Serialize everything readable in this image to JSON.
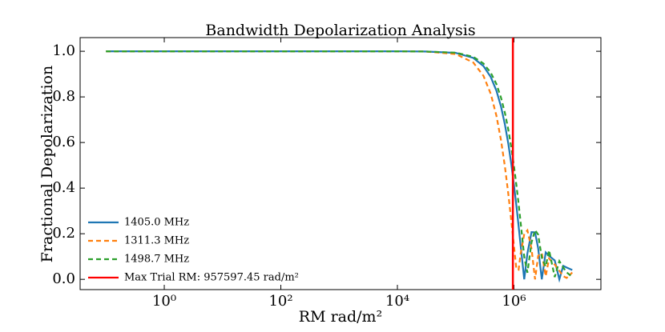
{
  "chart_data": {
    "type": "line",
    "title": "Bandwidth Depolarization Analysis",
    "x_label": "RM rad/m²",
    "y_label": "Fractional Depolarization",
    "x_scale": "log",
    "xlim": [
      0.036,
      31000000
    ],
    "ylim": [
      -0.045,
      1.06
    ],
    "xticks": [
      {
        "value": 1,
        "label": "10⁰"
      },
      {
        "value": 100,
        "label": "10²"
      },
      {
        "value": 10000,
        "label": "10⁴"
      },
      {
        "value": 1000000,
        "label": "10⁶"
      }
    ],
    "yticks": [
      {
        "value": 0,
        "label": "0.0"
      },
      {
        "value": 0.2,
        "label": "0.2"
      },
      {
        "value": 0.4,
        "label": "0.4"
      },
      {
        "value": 0.6,
        "label": "0.6"
      },
      {
        "value": 0.8,
        "label": "0.8"
      },
      {
        "value": 1,
        "label": "1.0"
      }
    ],
    "legend": "lower left",
    "x": [
      0.1,
      1,
      10,
      100,
      1000,
      10000,
      30000,
      100000,
      200000,
      300000,
      400000,
      500000,
      600000,
      700000,
      800000,
      900000,
      1000000,
      1100000,
      1200000,
      1300000,
      1500000,
      1700000,
      2000000,
      2300000,
      2600000,
      3000000,
      3500000,
      4000000,
      5000000,
      6000000,
      7000000,
      8000000,
      10000000
    ],
    "series": [
      {
        "name": "1405.0 MHz",
        "color": "#1f77b4",
        "style": "solid",
        "values": [
          1.0,
          1.0,
          1.0,
          1.0,
          1.0,
          1.0,
          0.999,
          0.993,
          0.971,
          0.935,
          0.887,
          0.827,
          0.757,
          0.678,
          0.594,
          0.505,
          0.413,
          0.323,
          0.234,
          0.149,
          0,
          0.114,
          0.207,
          0.206,
          0.136,
          0,
          0.118,
          0.103,
          0.083,
          0,
          0.059,
          0.052,
          0.041
        ]
      },
      {
        "name": "1311.3 MHz",
        "color": "#ff7f0e",
        "style": "dashed",
        "values": [
          1.0,
          1.0,
          1.0,
          1.0,
          1.0,
          1.0,
          0.999,
          0.988,
          0.951,
          0.892,
          0.813,
          0.717,
          0.609,
          0.493,
          0.374,
          0.256,
          0.146,
          0.045,
          0.042,
          0.112,
          0.199,
          0.215,
          0.134,
          0,
          0.103,
          0.115,
          0.014,
          0.091,
          0.065,
          0.038,
          0.014,
          0.006,
          0.03
        ]
      },
      {
        "name": "1498.7 MHz",
        "color": "#2ca02c",
        "style": "dashed",
        "values": [
          1.0,
          1.0,
          1.0,
          1.0,
          1.0,
          1.0,
          0.999,
          0.994,
          0.976,
          0.946,
          0.906,
          0.856,
          0.796,
          0.729,
          0.656,
          0.578,
          0.496,
          0.413,
          0.331,
          0.25,
          0.099,
          0.029,
          0.162,
          0.216,
          0.196,
          0.095,
          0.056,
          0.128,
          0.01,
          0.08,
          0.052,
          0.031,
          0.01
        ]
      }
    ],
    "vline": {
      "name": "Max Trial RM: 957597.45 rad/m²",
      "value": 957597.45,
      "color": "#ff0000"
    }
  }
}
